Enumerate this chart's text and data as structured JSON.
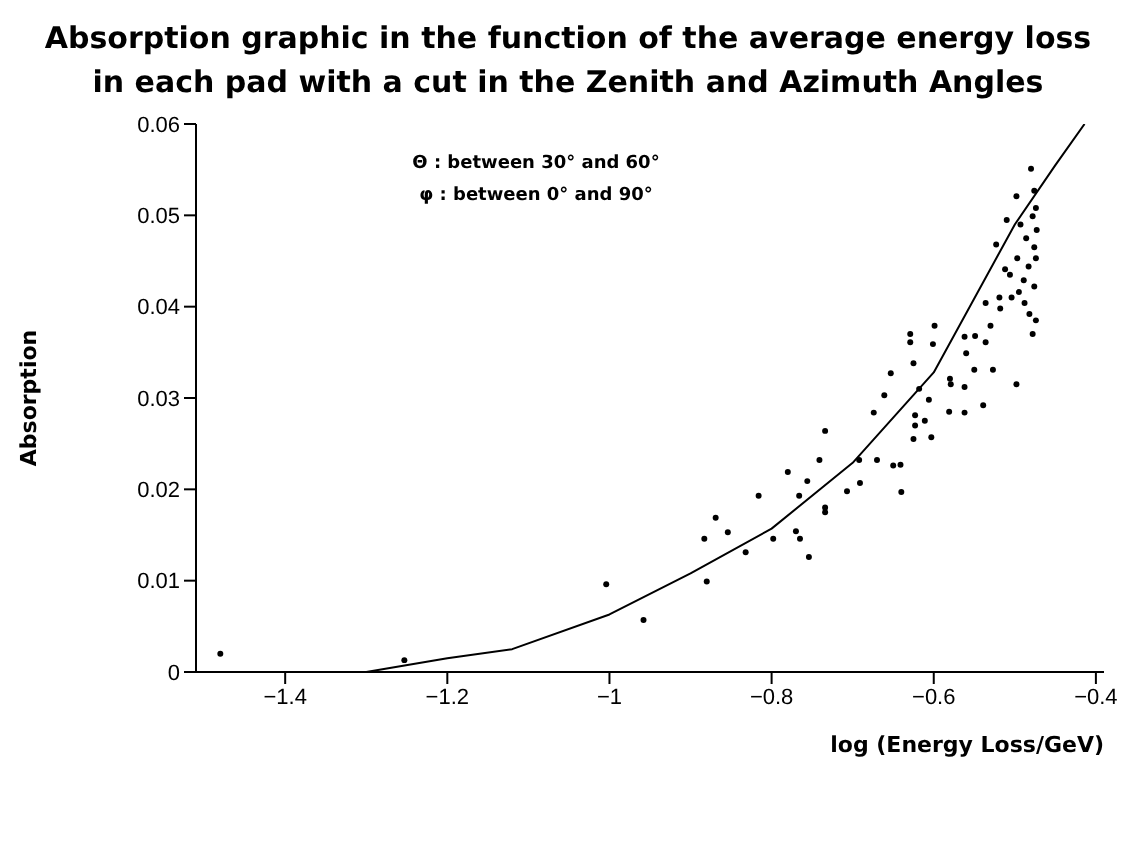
{
  "chart_data": {
    "type": "scatter",
    "title": "Absorption graphic in the function of the average energy loss in each pad with a cut in the Zenith and Azimuth Angles",
    "xlabel": "log (Energy Loss/GeV)",
    "ylabel": "Absorption",
    "annotations": [
      "Θ : between 30° and 60°",
      "φ : between 0° and 90°"
    ],
    "xlim": [
      -1.51,
      -0.39
    ],
    "xticks": [
      -1.4,
      -1.2,
      -1,
      -0.8,
      -0.6,
      -0.4
    ],
    "ylim": [
      0,
      0.06
    ],
    "yticks": [
      0,
      0.01,
      0.02,
      0.03,
      0.04,
      0.05,
      0.06
    ],
    "series": [
      {
        "marker": "circle",
        "color": "#000000",
        "x": [
          -1.48,
          -1.253,
          -1.004,
          -0.958,
          -0.88,
          -0.883,
          -0.869,
          -0.854,
          -0.832,
          -0.816,
          -0.798,
          -0.78,
          -0.77,
          -0.765,
          -0.766,
          -0.754,
          -0.756,
          -0.741,
          -0.734,
          -0.734,
          -0.734,
          -0.707,
          -0.691,
          -0.692,
          -0.67,
          -0.674,
          -0.661,
          -0.653,
          -0.65,
          -0.641,
          -0.64,
          -0.629,
          -0.629,
          -0.625,
          -0.623,
          -0.623,
          -0.625,
          -0.618,
          -0.611,
          -0.606,
          -0.603,
          -0.601,
          -0.599,
          -0.58,
          -0.581,
          -0.579,
          -0.562,
          -0.562,
          -0.56,
          -0.562,
          -0.55,
          -0.549,
          -0.539,
          -0.536,
          -0.536,
          -0.53,
          -0.527,
          -0.523,
          -0.519,
          -0.518,
          -0.512,
          -0.51,
          -0.506,
          -0.504,
          -0.498,
          -0.498,
          -0.497,
          -0.495,
          -0.493,
          -0.489,
          -0.488,
          -0.486,
          -0.483,
          -0.482,
          -0.48,
          -0.478,
          -0.478,
          -0.476,
          -0.476,
          -0.476,
          -0.474,
          -0.474,
          -0.474,
          -0.473
        ],
        "values": [
          0.002,
          0.0013,
          0.0096,
          0.0057,
          0.0099,
          0.0146,
          0.0169,
          0.0153,
          0.0131,
          0.0193,
          0.0146,
          0.0219,
          0.0154,
          0.0146,
          0.0193,
          0.0126,
          0.0209,
          0.0232,
          0.0264,
          0.018,
          0.0175,
          0.0198,
          0.0207,
          0.0232,
          0.0232,
          0.0284,
          0.0303,
          0.0327,
          0.0226,
          0.0227,
          0.0197,
          0.037,
          0.0361,
          0.0338,
          0.0281,
          0.027,
          0.0255,
          0.031,
          0.0275,
          0.0298,
          0.0257,
          0.0359,
          0.0379,
          0.0321,
          0.0285,
          0.0315,
          0.0367,
          0.0312,
          0.0349,
          0.0284,
          0.0331,
          0.0368,
          0.0292,
          0.0361,
          0.0404,
          0.0379,
          0.0331,
          0.0468,
          0.041,
          0.0398,
          0.0441,
          0.0495,
          0.0435,
          0.041,
          0.0521,
          0.0315,
          0.0453,
          0.0416,
          0.049,
          0.0429,
          0.0404,
          0.0475,
          0.0444,
          0.0392,
          0.0551,
          0.0499,
          0.037,
          0.0527,
          0.0465,
          0.0422,
          0.0508,
          0.0453,
          0.0385,
          0.0484
        ]
      },
      {
        "type": "line",
        "marker": "none",
        "color": "#000000",
        "x": [
          -1.3,
          -1.2,
          -1.12,
          -1,
          -0.9,
          -0.8,
          -0.7,
          -0.6,
          -0.5,
          -0.45,
          -0.414
        ],
        "values": [
          0,
          0.0015,
          0.0025,
          0.0063,
          0.0108,
          0.0157,
          0.0229,
          0.0328,
          0.049,
          0.0555,
          0.06
        ]
      }
    ]
  }
}
